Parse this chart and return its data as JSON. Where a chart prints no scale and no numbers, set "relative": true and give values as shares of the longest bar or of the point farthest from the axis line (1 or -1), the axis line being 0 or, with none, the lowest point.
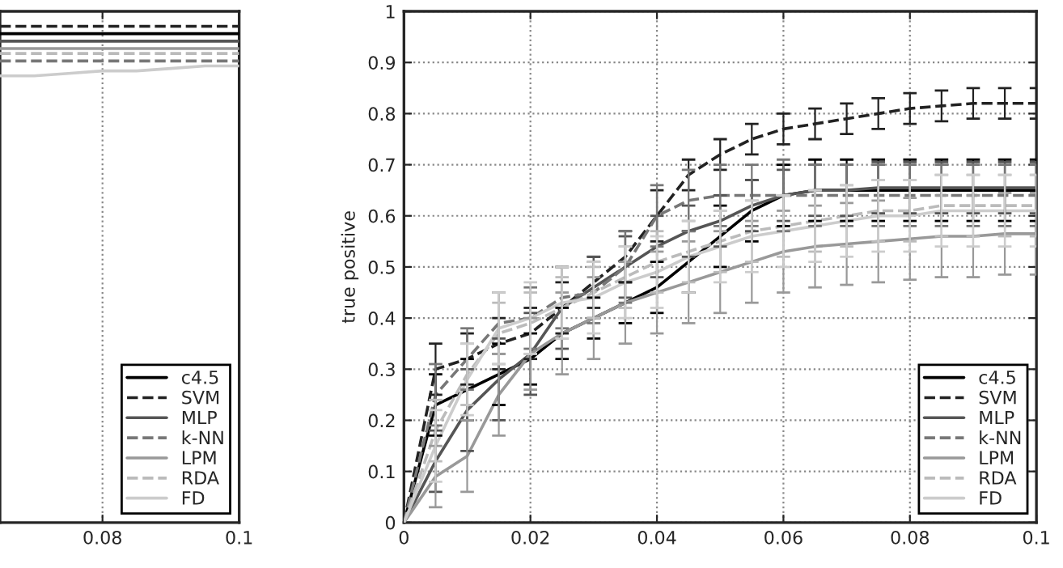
{
  "chart_data": [
    {
      "type": "line",
      "relative": true,
      "xlim": [
        0.065,
        0.1
      ],
      "xticks": [
        0.08,
        0.1
      ],
      "tick_labels": "x",
      "grid": "x",
      "legend": "bottom right",
      "marker": "none",
      "x": [
        0.065,
        0.07,
        0.075,
        0.08,
        0.085,
        0.09,
        0.095,
        0.1
      ],
      "series": [
        {
          "name": "c4.5",
          "color": "#000000",
          "line_style": "solid",
          "values": [
            0.985,
            0.985,
            0.985,
            0.985,
            0.985,
            0.985,
            0.985,
            0.985
          ]
        },
        {
          "name": "SVM",
          "color": "#222222",
          "line_style": "dashed",
          "values": [
            1,
            1,
            1,
            1,
            1,
            1,
            1,
            1
          ]
        },
        {
          "name": "MLP",
          "color": "#555555",
          "line_style": "solid",
          "values": [
            0.97,
            0.97,
            0.97,
            0.97,
            0.97,
            0.97,
            0.97,
            0.97
          ]
        },
        {
          "name": "k-NN",
          "color": "#777777",
          "line_style": "dashed",
          "values": [
            0.93,
            0.93,
            0.93,
            0.93,
            0.93,
            0.93,
            0.93,
            0.93
          ]
        },
        {
          "name": "LPM",
          "color": "#999999",
          "line_style": "solid",
          "values": [
            0.955,
            0.955,
            0.955,
            0.955,
            0.955,
            0.955,
            0.955,
            0.955
          ]
        },
        {
          "name": "RDA",
          "color": "#bbbbbb",
          "line_style": "dashed",
          "values": [
            0.945,
            0.945,
            0.945,
            0.945,
            0.945,
            0.945,
            0.945,
            0.945
          ]
        },
        {
          "name": "FD",
          "color": "#cccccc",
          "line_style": "solid",
          "values": [
            0.9,
            0.9,
            0.905,
            0.91,
            0.91,
            0.915,
            0.92,
            0.92
          ]
        }
      ]
    },
    {
      "type": "line",
      "ylabel": "true positive",
      "xlim": [
        0,
        0.1
      ],
      "xticks": [
        0,
        0.02,
        0.04,
        0.06,
        0.08,
        0.1
      ],
      "ylim": [
        0,
        1
      ],
      "yticks": [
        0,
        0.1,
        0.2,
        0.3,
        0.4,
        0.5,
        0.6,
        0.7,
        0.8,
        0.9,
        1
      ],
      "grid": true,
      "legend": "bottom right",
      "marker": "none",
      "x": [
        0,
        0.005,
        0.01,
        0.015,
        0.02,
        0.025,
        0.03,
        0.035,
        0.04,
        0.045,
        0.05,
        0.055,
        0.06,
        0.065,
        0.07,
        0.075,
        0.08,
        0.085,
        0.09,
        0.095,
        0.1
      ],
      "series": [
        {
          "name": "c4.5",
          "color": "#000000",
          "line_style": "solid",
          "values": [
            0,
            0.23,
            0.26,
            0.29,
            0.32,
            0.37,
            0.4,
            0.43,
            0.46,
            0.51,
            0.56,
            0.61,
            0.64,
            0.65,
            0.65,
            0.65,
            0.65,
            0.65,
            0.65,
            0.65,
            0.65
          ],
          "errors": [
            null,
            0.06,
            0.06,
            0.06,
            0.05,
            0.05,
            0.04,
            0.04,
            0.05,
            0.06,
            0.06,
            0.06,
            0.06,
            0.06,
            0.06,
            0.06,
            0.06,
            0.06,
            0.06,
            0.06,
            0.06
          ]
        },
        {
          "name": "SVM",
          "color": "#222222",
          "line_style": "dashed",
          "values": [
            0,
            0.3,
            0.32,
            0.35,
            0.37,
            0.42,
            0.47,
            0.52,
            0.6,
            0.68,
            0.72,
            0.75,
            0.77,
            0.78,
            0.79,
            0.8,
            0.81,
            0.815,
            0.82,
            0.82,
            0.82
          ],
          "errors": [
            null,
            0.05,
            0.05,
            0.05,
            0.05,
            0.05,
            0.05,
            0.05,
            0.05,
            0.03,
            0.03,
            0.03,
            0.03,
            0.03,
            0.03,
            0.03,
            0.03,
            0.03,
            0.03,
            0.03,
            0.03
          ]
        },
        {
          "name": "MLP",
          "color": "#555555",
          "line_style": "solid",
          "values": [
            0,
            0.12,
            0.22,
            0.28,
            0.33,
            0.42,
            0.46,
            0.5,
            0.54,
            0.57,
            0.59,
            0.62,
            0.64,
            0.65,
            0.65,
            0.655,
            0.655,
            0.655,
            0.655,
            0.655,
            0.655
          ],
          "errors": [
            null,
            0.06,
            0.08,
            0.08,
            0.08,
            0.08,
            0.06,
            0.06,
            0.06,
            0.05,
            0.05,
            0.05,
            0.05,
            0.05,
            0.05,
            0.05,
            0.05,
            0.05,
            0.05,
            0.05,
            0.05
          ]
        },
        {
          "name": "k-NN",
          "color": "#777777",
          "line_style": "dashed",
          "values": [
            0,
            0.25,
            0.32,
            0.39,
            0.4,
            0.44,
            0.45,
            0.5,
            0.6,
            0.63,
            0.64,
            0.64,
            0.64,
            0.64,
            0.64,
            0.64,
            0.64,
            0.64,
            0.64,
            0.64,
            0.64
          ],
          "errors": [
            null,
            0.06,
            0.06,
            0.06,
            0.06,
            0.06,
            0.06,
            0.07,
            0.06,
            0.06,
            0.06,
            0.06,
            0.07,
            0.06,
            0.06,
            0.06,
            0.06,
            0.06,
            0.06,
            0.06,
            0.06
          ]
        },
        {
          "name": "LPM",
          "color": "#999999",
          "line_style": "solid",
          "values": [
            0,
            0.09,
            0.13,
            0.25,
            0.33,
            0.37,
            0.4,
            0.43,
            0.45,
            0.47,
            0.49,
            0.51,
            0.53,
            0.54,
            0.545,
            0.55,
            0.555,
            0.56,
            0.56,
            0.565,
            0.565
          ],
          "errors": [
            null,
            0.06,
            0.07,
            0.08,
            0.07,
            0.08,
            0.08,
            0.08,
            0.08,
            0.08,
            0.08,
            0.08,
            0.08,
            0.08,
            0.08,
            0.08,
            0.08,
            0.08,
            0.08,
            0.08,
            0.08
          ]
        },
        {
          "name": "RDA",
          "color": "#bbbbbb",
          "line_style": "dashed",
          "values": [
            0,
            0.18,
            0.29,
            0.37,
            0.39,
            0.42,
            0.45,
            0.48,
            0.51,
            0.53,
            0.55,
            0.57,
            0.58,
            0.59,
            0.6,
            0.61,
            0.61,
            0.62,
            0.62,
            0.62,
            0.62
          ],
          "errors": [
            null,
            0.06,
            0.06,
            0.06,
            0.06,
            0.06,
            0.05,
            0.06,
            0.06,
            0.06,
            0.06,
            0.06,
            0.06,
            0.06,
            0.06,
            0.06,
            0.06,
            0.06,
            0.06,
            0.06,
            0.06
          ]
        },
        {
          "name": "FD",
          "color": "#cccccc",
          "line_style": "solid",
          "values": [
            0,
            0.15,
            0.28,
            0.38,
            0.4,
            0.43,
            0.44,
            0.47,
            0.49,
            0.52,
            0.54,
            0.56,
            0.57,
            0.58,
            0.59,
            0.6,
            0.6,
            0.61,
            0.61,
            0.61,
            0.61
          ],
          "errors": [
            null,
            0.07,
            0.07,
            0.07,
            0.07,
            0.07,
            0.07,
            0.07,
            0.07,
            0.07,
            0.07,
            0.07,
            0.07,
            0.07,
            0.07,
            0.07,
            0.07,
            0.07,
            0.07,
            0.07,
            0.07
          ]
        }
      ]
    }
  ]
}
